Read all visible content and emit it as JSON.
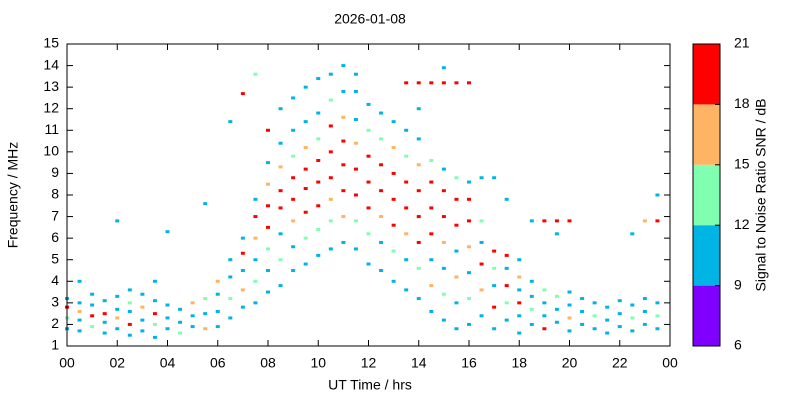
{
  "chart_data": {
    "type": "scatter",
    "title": "2026-01-08",
    "x_label": "UT Time / hrs",
    "y_label": "Frequency / MHz",
    "xlim": [
      0,
      24
    ],
    "xticks": [
      {
        "value": 0,
        "label": "00"
      },
      {
        "value": 2,
        "label": "02"
      },
      {
        "value": 4,
        "label": "04"
      },
      {
        "value": 6,
        "label": "06"
      },
      {
        "value": 8,
        "label": "08"
      },
      10,
      12,
      14,
      16,
      18,
      20,
      22,
      {
        "value": 24,
        "label": "00"
      }
    ],
    "ylim": [
      1,
      15
    ],
    "yticks": [
      1,
      2,
      3,
      4,
      5,
      6,
      7,
      8,
      9,
      10,
      11,
      12,
      13,
      14,
      15
    ],
    "colorbar": {
      "label": "Signal to Noise Ratio SNR / dB",
      "zlim": [
        6,
        21
      ],
      "zticks": [
        6,
        9,
        12,
        15,
        18,
        21
      ],
      "colors": [
        "#8000ff",
        "#00b4e6",
        "#80ffb0",
        "#ffb464",
        "#ff0000"
      ]
    },
    "columns": [
      {
        "x": 0,
        "y": [
          1.8,
          2.3,
          2.8,
          3.2
        ],
        "z": [
          10,
          13,
          19,
          10
        ]
      },
      {
        "x": 0.5,
        "y": [
          1.7,
          2.2,
          2.6,
          3.0,
          4.0
        ],
        "z": [
          10,
          10,
          16,
          10,
          10
        ]
      },
      {
        "x": 1,
        "y": [
          1.9,
          2.4,
          2.9,
          3.4
        ],
        "z": [
          13,
          19,
          10,
          10
        ]
      },
      {
        "x": 1.5,
        "y": [
          1.6,
          2.1,
          2.5,
          3.1
        ],
        "z": [
          10,
          10,
          19,
          10
        ]
      },
      {
        "x": 2,
        "y": [
          1.8,
          2.3,
          2.7,
          3.3,
          6.8
        ],
        "z": [
          10,
          16,
          10,
          10,
          10
        ]
      },
      {
        "x": 2.5,
        "y": [
          1.5,
          2.0,
          2.6,
          3.0,
          3.6
        ],
        "z": [
          10,
          19,
          10,
          13,
          10
        ]
      },
      {
        "x": 3,
        "y": [
          1.7,
          2.2,
          2.8,
          3.4
        ],
        "z": [
          10,
          10,
          16,
          10
        ]
      },
      {
        "x": 3.5,
        "y": [
          1.4,
          2.0,
          2.5,
          3.1,
          4.0
        ],
        "z": [
          10,
          13,
          19,
          10,
          10
        ]
      },
      {
        "x": 4,
        "y": [
          1.8,
          2.3,
          2.9,
          6.3
        ],
        "z": [
          10,
          10,
          10,
          10
        ]
      },
      {
        "x": 4.5,
        "y": [
          1.6,
          2.1,
          2.7
        ],
        "z": [
          13,
          10,
          10
        ]
      },
      {
        "x": 5,
        "y": [
          1.9,
          2.4,
          3.0
        ],
        "z": [
          10,
          10,
          16
        ]
      },
      {
        "x": 5.5,
        "y": [
          1.8,
          2.5,
          3.2,
          7.6
        ],
        "z": [
          16,
          10,
          13,
          10
        ]
      },
      {
        "x": 6,
        "y": [
          1.9,
          2.6,
          3.4,
          4.0
        ],
        "z": [
          10,
          10,
          10,
          16
        ]
      },
      {
        "x": 6.5,
        "y": [
          2.3,
          3.2,
          4.2,
          5.0,
          11.4
        ],
        "z": [
          10,
          13,
          10,
          10,
          10
        ]
      },
      {
        "x": 7,
        "y": [
          2.8,
          3.6,
          4.5,
          5.3,
          6.0,
          12.7
        ],
        "z": [
          10,
          16,
          10,
          19,
          10,
          19
        ]
      },
      {
        "x": 7.5,
        "y": [
          3.0,
          4.0,
          5.0,
          6.0,
          7.0,
          7.8,
          13.6
        ],
        "z": [
          10,
          13,
          10,
          16,
          19,
          10,
          13
        ]
      },
      {
        "x": 8,
        "y": [
          3.5,
          4.5,
          5.5,
          6.5,
          7.5,
          8.5,
          9.5,
          11.0
        ],
        "z": [
          10,
          10,
          13,
          19,
          19,
          16,
          10,
          19
        ]
      },
      {
        "x": 8.5,
        "y": [
          3.8,
          5.0,
          6.2,
          7.4,
          8.2,
          9.3,
          10.4,
          12.0
        ],
        "z": [
          10,
          13,
          10,
          19,
          19,
          16,
          10,
          10
        ]
      },
      {
        "x": 9,
        "y": [
          4.5,
          5.6,
          6.8,
          7.8,
          8.8,
          9.8,
          11.0,
          12.5
        ],
        "z": [
          10,
          10,
          16,
          19,
          19,
          13,
          10,
          10
        ]
      },
      {
        "x": 9.5,
        "y": [
          4.8,
          6.0,
          7.2,
          8.3,
          9.2,
          10.2,
          11.4,
          13.0
        ],
        "z": [
          10,
          13,
          19,
          19,
          19,
          16,
          10,
          10
        ]
      },
      {
        "x": 10,
        "y": [
          5.2,
          6.4,
          7.5,
          8.6,
          9.6,
          10.6,
          11.8,
          13.4
        ],
        "z": [
          10,
          13,
          19,
          19,
          19,
          13,
          10,
          10
        ]
      },
      {
        "x": 10.5,
        "y": [
          5.5,
          6.8,
          7.8,
          8.8,
          10.0,
          11.2,
          12.4,
          13.6
        ],
        "z": [
          10,
          13,
          16,
          19,
          19,
          19,
          13,
          10
        ]
      },
      {
        "x": 11,
        "y": [
          5.8,
          7.0,
          8.2,
          9.4,
          10.5,
          11.6,
          12.8,
          14.0
        ],
        "z": [
          10,
          16,
          19,
          19,
          19,
          16,
          10,
          10
        ]
      },
      {
        "x": 11.5,
        "y": [
          5.5,
          6.8,
          8.0,
          9.2,
          10.4,
          11.5,
          12.8,
          13.6
        ],
        "z": [
          10,
          13,
          19,
          19,
          16,
          10,
          10,
          10
        ]
      },
      {
        "x": 12,
        "y": [
          4.8,
          6.2,
          7.4,
          8.6,
          9.8,
          11.0,
          12.2
        ],
        "z": [
          10,
          13,
          19,
          19,
          19,
          13,
          10
        ]
      },
      {
        "x": 12.5,
        "y": [
          4.5,
          5.8,
          7.0,
          8.2,
          9.4,
          10.6,
          11.8
        ],
        "z": [
          10,
          10,
          16,
          19,
          19,
          13,
          10
        ]
      },
      {
        "x": 13,
        "y": [
          4.0,
          5.4,
          6.6,
          7.8,
          9.0,
          10.2,
          11.4
        ],
        "z": [
          10,
          13,
          19,
          19,
          19,
          16,
          10
        ]
      },
      {
        "x": 13.5,
        "y": [
          3.6,
          5.0,
          6.2,
          7.4,
          8.6,
          9.8,
          11.0,
          13.2
        ],
        "z": [
          10,
          10,
          16,
          19,
          19,
          13,
          10,
          19
        ]
      },
      {
        "x": 14,
        "y": [
          3.2,
          4.6,
          5.8,
          7.0,
          8.2,
          9.4,
          10.6,
          12.0,
          13.2
        ],
        "z": [
          10,
          13,
          19,
          19,
          19,
          16,
          10,
          10,
          19
        ]
      },
      {
        "x": 14.5,
        "y": [
          2.6,
          3.8,
          5.0,
          6.2,
          7.4,
          8.6,
          9.6,
          13.2
        ],
        "z": [
          10,
          16,
          10,
          19,
          19,
          19,
          13,
          19
        ]
      },
      {
        "x": 15,
        "y": [
          2.2,
          3.4,
          4.6,
          5.8,
          7.0,
          8.2,
          9.2,
          13.9,
          13.2
        ],
        "z": [
          10,
          13,
          10,
          16,
          19,
          19,
          10,
          10,
          19
        ]
      },
      {
        "x": 15.5,
        "y": [
          1.8,
          3.0,
          4.2,
          5.4,
          6.6,
          7.8,
          8.8,
          13.2
        ],
        "z": [
          10,
          10,
          16,
          10,
          19,
          19,
          13,
          19
        ]
      },
      {
        "x": 16,
        "y": [
          2.0,
          3.2,
          4.4,
          5.6,
          6.8,
          7.8,
          8.6,
          13.2
        ],
        "z": [
          10,
          13,
          10,
          16,
          19,
          19,
          10,
          19
        ]
      },
      {
        "x": 16.5,
        "y": [
          2.4,
          3.6,
          4.8,
          5.8,
          6.8,
          8.8
        ],
        "z": [
          10,
          16,
          19,
          10,
          13,
          10
        ]
      },
      {
        "x": 17,
        "y": [
          1.8,
          2.8,
          3.8,
          4.6,
          5.4,
          8.8
        ],
        "z": [
          10,
          19,
          10,
          13,
          19,
          10
        ]
      },
      {
        "x": 17.5,
        "y": [
          2.2,
          3.0,
          3.8,
          4.6,
          5.2,
          7.8
        ],
        "z": [
          10,
          13,
          19,
          10,
          19,
          10
        ]
      },
      {
        "x": 18,
        "y": [
          1.6,
          2.4,
          3.0,
          3.6,
          4.2,
          5.0
        ],
        "z": [
          10,
          10,
          19,
          10,
          16,
          10
        ]
      },
      {
        "x": 18.5,
        "y": [
          2.0,
          2.7,
          3.3,
          4.0,
          6.8
        ],
        "z": [
          10,
          13,
          10,
          10,
          10
        ]
      },
      {
        "x": 19,
        "y": [
          1.8,
          2.4,
          3.0,
          3.6,
          6.8
        ],
        "z": [
          19,
          10,
          10,
          13,
          19
        ]
      },
      {
        "x": 19.5,
        "y": [
          2.1,
          2.7,
          3.3,
          6.8,
          6.2
        ],
        "z": [
          10,
          10,
          13,
          19,
          10
        ]
      },
      {
        "x": 20,
        "y": [
          1.7,
          2.3,
          2.9,
          3.5,
          6.8
        ],
        "z": [
          10,
          16,
          10,
          10,
          19
        ]
      },
      {
        "x": 20.5,
        "y": [
          2.0,
          2.6,
          3.2
        ],
        "z": [
          10,
          10,
          10
        ]
      },
      {
        "x": 21,
        "y": [
          1.8,
          2.4,
          3.0
        ],
        "z": [
          10,
          13,
          10
        ]
      },
      {
        "x": 21.5,
        "y": [
          1.6,
          2.2,
          2.8
        ],
        "z": [
          10,
          10,
          10
        ]
      },
      {
        "x": 22,
        "y": [
          1.9,
          2.5,
          3.1
        ],
        "z": [
          10,
          10,
          10
        ]
      },
      {
        "x": 22.5,
        "y": [
          1.7,
          2.3,
          2.9,
          6.2
        ],
        "z": [
          10,
          13,
          10,
          10
        ]
      },
      {
        "x": 23,
        "y": [
          2.0,
          2.6,
          3.2,
          6.8
        ],
        "z": [
          10,
          10,
          10,
          16
        ]
      },
      {
        "x": 23.5,
        "y": [
          1.8,
          2.4,
          3.0,
          6.8,
          8.0
        ],
        "z": [
          10,
          13,
          10,
          19,
          10
        ]
      }
    ]
  }
}
